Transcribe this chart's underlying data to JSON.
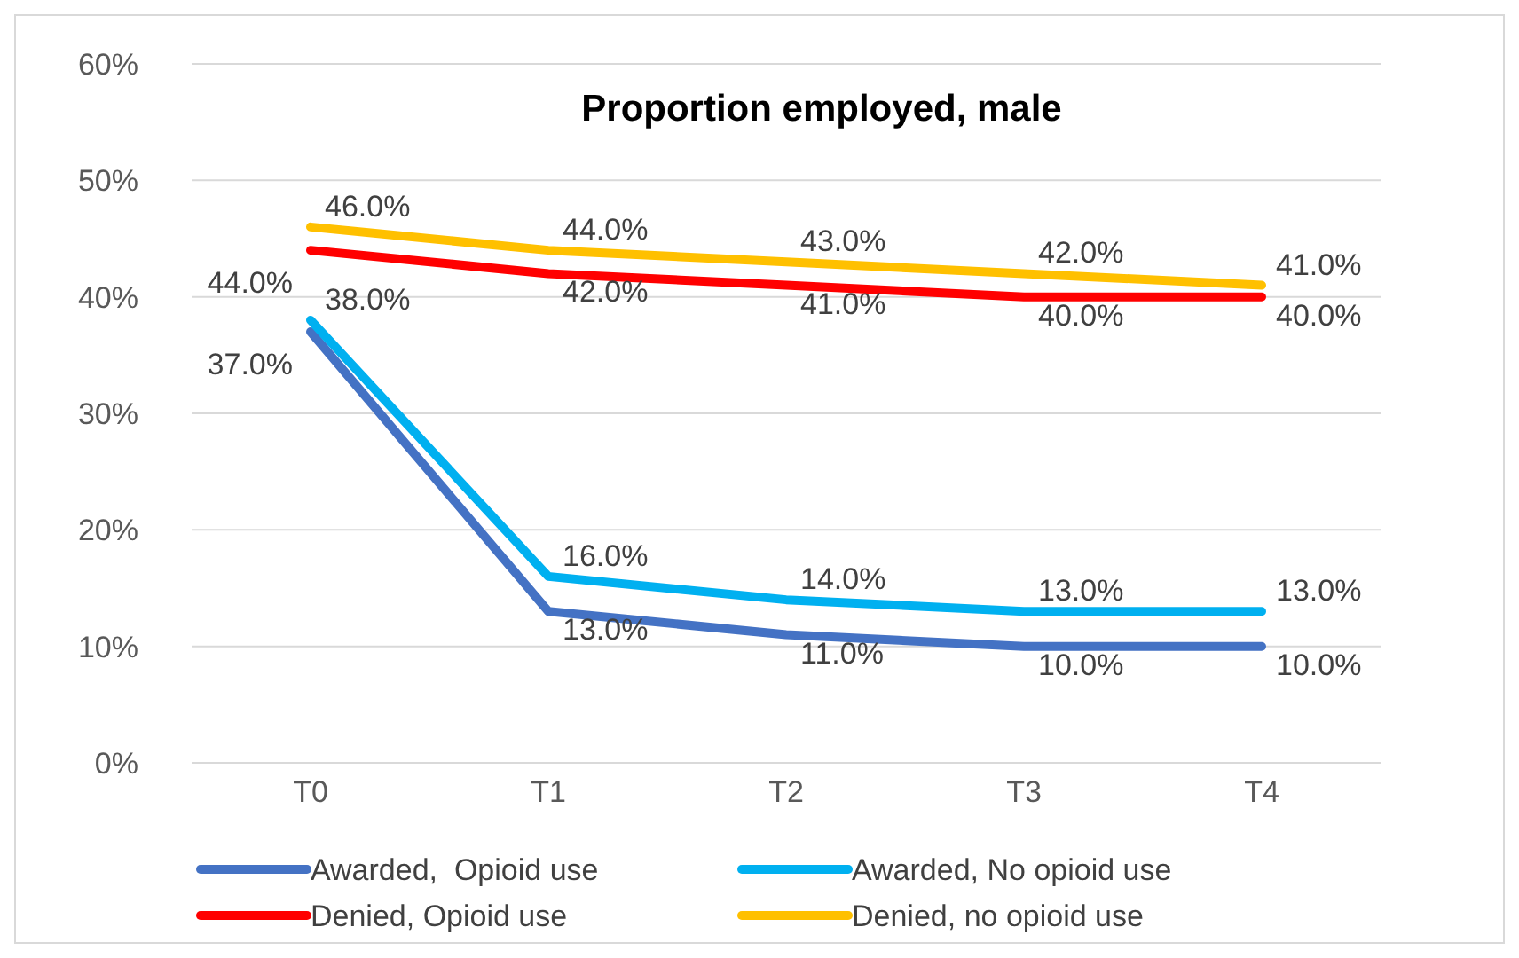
{
  "chart_data": {
    "type": "line",
    "title": "Proportion employed, male",
    "categories": [
      "T0",
      "T1",
      "T2",
      "T3",
      "T4"
    ],
    "ylim": [
      0,
      60
    ],
    "yticks": [
      {
        "value": 0,
        "label": "0%"
      },
      {
        "value": 10,
        "label": "10%"
      },
      {
        "value": 20,
        "label": "20%"
      },
      {
        "value": 30,
        "label": "30%"
      },
      {
        "value": 40,
        "label": "40%"
      },
      {
        "value": 50,
        "label": "50%"
      },
      {
        "value": 60,
        "label": "60%"
      }
    ],
    "grid": "y",
    "legend": "bottom",
    "marker": "none",
    "line_style": "solid",
    "series": [
      {
        "name": "Awarded,  Opioid use",
        "color": "#4472c4",
        "values": [
          37,
          13,
          11,
          10,
          10
        ],
        "value_labels": [
          "37.0%",
          "13.0%",
          "11.0%",
          "10.0%",
          "10.0%"
        ]
      },
      {
        "name": "Awarded, No opioid use",
        "color": "#00b0f0",
        "values": [
          38,
          16,
          14,
          13,
          13
        ],
        "value_labels": [
          "38.0%",
          "16.0%",
          "14.0%",
          "13.0%",
          "13.0%"
        ]
      },
      {
        "name": "Denied, Opioid use",
        "color": "#ff0000",
        "values": [
          44,
          42,
          41,
          40,
          40
        ],
        "value_labels": [
          "44.0%",
          "42.0%",
          "41.0%",
          "40.0%",
          "40.0%"
        ]
      },
      {
        "name": "Denied, no opioid use",
        "color": "#ffc000",
        "values": [
          46,
          44,
          43,
          42,
          41
        ],
        "value_labels": [
          "46.0%",
          "44.0%",
          "43.0%",
          "42.0%",
          "41.0%"
        ]
      }
    ]
  }
}
